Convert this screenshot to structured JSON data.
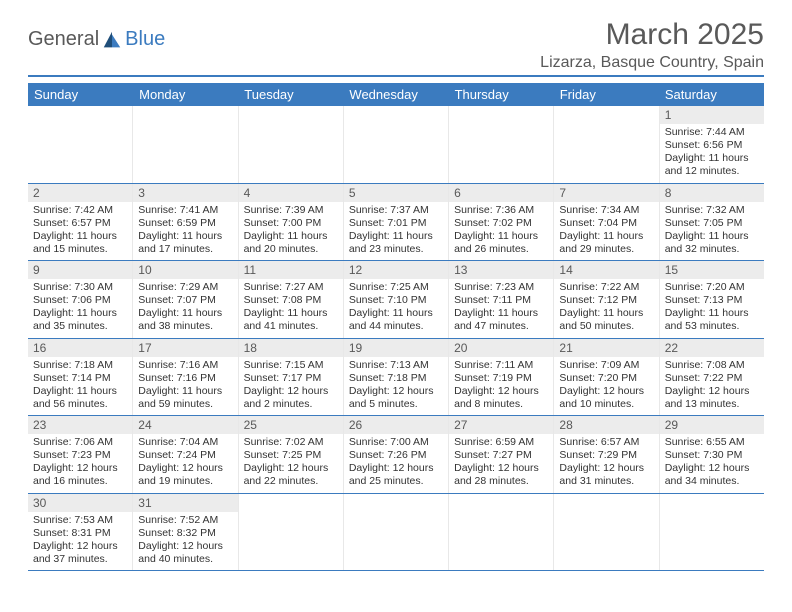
{
  "logo": {
    "text1": "General",
    "text2": "Blue"
  },
  "title": "March 2025",
  "location": "Lizarza, Basque Country, Spain",
  "colors": {
    "accent": "#3b7bbf",
    "text_muted": "#595959",
    "daynum_bg": "#ececec",
    "cell_border": "#e8e8e8",
    "background": "#ffffff"
  },
  "typography": {
    "title_fontsize": 30,
    "location_fontsize": 16,
    "dayheader_fontsize": 13,
    "daynum_fontsize": 12,
    "body_fontsize": 10.5
  },
  "calendar": {
    "type": "table",
    "columns": [
      "Sunday",
      "Monday",
      "Tuesday",
      "Wednesday",
      "Thursday",
      "Friday",
      "Saturday"
    ],
    "weeks": [
      [
        null,
        null,
        null,
        null,
        null,
        null,
        {
          "n": "1",
          "sr": "Sunrise: 7:44 AM",
          "ss": "Sunset: 6:56 PM",
          "d1": "Daylight: 11 hours",
          "d2": "and 12 minutes."
        }
      ],
      [
        {
          "n": "2",
          "sr": "Sunrise: 7:42 AM",
          "ss": "Sunset: 6:57 PM",
          "d1": "Daylight: 11 hours",
          "d2": "and 15 minutes."
        },
        {
          "n": "3",
          "sr": "Sunrise: 7:41 AM",
          "ss": "Sunset: 6:59 PM",
          "d1": "Daylight: 11 hours",
          "d2": "and 17 minutes."
        },
        {
          "n": "4",
          "sr": "Sunrise: 7:39 AM",
          "ss": "Sunset: 7:00 PM",
          "d1": "Daylight: 11 hours",
          "d2": "and 20 minutes."
        },
        {
          "n": "5",
          "sr": "Sunrise: 7:37 AM",
          "ss": "Sunset: 7:01 PM",
          "d1": "Daylight: 11 hours",
          "d2": "and 23 minutes."
        },
        {
          "n": "6",
          "sr": "Sunrise: 7:36 AM",
          "ss": "Sunset: 7:02 PM",
          "d1": "Daylight: 11 hours",
          "d2": "and 26 minutes."
        },
        {
          "n": "7",
          "sr": "Sunrise: 7:34 AM",
          "ss": "Sunset: 7:04 PM",
          "d1": "Daylight: 11 hours",
          "d2": "and 29 minutes."
        },
        {
          "n": "8",
          "sr": "Sunrise: 7:32 AM",
          "ss": "Sunset: 7:05 PM",
          "d1": "Daylight: 11 hours",
          "d2": "and 32 minutes."
        }
      ],
      [
        {
          "n": "9",
          "sr": "Sunrise: 7:30 AM",
          "ss": "Sunset: 7:06 PM",
          "d1": "Daylight: 11 hours",
          "d2": "and 35 minutes."
        },
        {
          "n": "10",
          "sr": "Sunrise: 7:29 AM",
          "ss": "Sunset: 7:07 PM",
          "d1": "Daylight: 11 hours",
          "d2": "and 38 minutes."
        },
        {
          "n": "11",
          "sr": "Sunrise: 7:27 AM",
          "ss": "Sunset: 7:08 PM",
          "d1": "Daylight: 11 hours",
          "d2": "and 41 minutes."
        },
        {
          "n": "12",
          "sr": "Sunrise: 7:25 AM",
          "ss": "Sunset: 7:10 PM",
          "d1": "Daylight: 11 hours",
          "d2": "and 44 minutes."
        },
        {
          "n": "13",
          "sr": "Sunrise: 7:23 AM",
          "ss": "Sunset: 7:11 PM",
          "d1": "Daylight: 11 hours",
          "d2": "and 47 minutes."
        },
        {
          "n": "14",
          "sr": "Sunrise: 7:22 AM",
          "ss": "Sunset: 7:12 PM",
          "d1": "Daylight: 11 hours",
          "d2": "and 50 minutes."
        },
        {
          "n": "15",
          "sr": "Sunrise: 7:20 AM",
          "ss": "Sunset: 7:13 PM",
          "d1": "Daylight: 11 hours",
          "d2": "and 53 minutes."
        }
      ],
      [
        {
          "n": "16",
          "sr": "Sunrise: 7:18 AM",
          "ss": "Sunset: 7:14 PM",
          "d1": "Daylight: 11 hours",
          "d2": "and 56 minutes."
        },
        {
          "n": "17",
          "sr": "Sunrise: 7:16 AM",
          "ss": "Sunset: 7:16 PM",
          "d1": "Daylight: 11 hours",
          "d2": "and 59 minutes."
        },
        {
          "n": "18",
          "sr": "Sunrise: 7:15 AM",
          "ss": "Sunset: 7:17 PM",
          "d1": "Daylight: 12 hours",
          "d2": "and 2 minutes."
        },
        {
          "n": "19",
          "sr": "Sunrise: 7:13 AM",
          "ss": "Sunset: 7:18 PM",
          "d1": "Daylight: 12 hours",
          "d2": "and 5 minutes."
        },
        {
          "n": "20",
          "sr": "Sunrise: 7:11 AM",
          "ss": "Sunset: 7:19 PM",
          "d1": "Daylight: 12 hours",
          "d2": "and 8 minutes."
        },
        {
          "n": "21",
          "sr": "Sunrise: 7:09 AM",
          "ss": "Sunset: 7:20 PM",
          "d1": "Daylight: 12 hours",
          "d2": "and 10 minutes."
        },
        {
          "n": "22",
          "sr": "Sunrise: 7:08 AM",
          "ss": "Sunset: 7:22 PM",
          "d1": "Daylight: 12 hours",
          "d2": "and 13 minutes."
        }
      ],
      [
        {
          "n": "23",
          "sr": "Sunrise: 7:06 AM",
          "ss": "Sunset: 7:23 PM",
          "d1": "Daylight: 12 hours",
          "d2": "and 16 minutes."
        },
        {
          "n": "24",
          "sr": "Sunrise: 7:04 AM",
          "ss": "Sunset: 7:24 PM",
          "d1": "Daylight: 12 hours",
          "d2": "and 19 minutes."
        },
        {
          "n": "25",
          "sr": "Sunrise: 7:02 AM",
          "ss": "Sunset: 7:25 PM",
          "d1": "Daylight: 12 hours",
          "d2": "and 22 minutes."
        },
        {
          "n": "26",
          "sr": "Sunrise: 7:00 AM",
          "ss": "Sunset: 7:26 PM",
          "d1": "Daylight: 12 hours",
          "d2": "and 25 minutes."
        },
        {
          "n": "27",
          "sr": "Sunrise: 6:59 AM",
          "ss": "Sunset: 7:27 PM",
          "d1": "Daylight: 12 hours",
          "d2": "and 28 minutes."
        },
        {
          "n": "28",
          "sr": "Sunrise: 6:57 AM",
          "ss": "Sunset: 7:29 PM",
          "d1": "Daylight: 12 hours",
          "d2": "and 31 minutes."
        },
        {
          "n": "29",
          "sr": "Sunrise: 6:55 AM",
          "ss": "Sunset: 7:30 PM",
          "d1": "Daylight: 12 hours",
          "d2": "and 34 minutes."
        }
      ],
      [
        {
          "n": "30",
          "sr": "Sunrise: 7:53 AM",
          "ss": "Sunset: 8:31 PM",
          "d1": "Daylight: 12 hours",
          "d2": "and 37 minutes."
        },
        {
          "n": "31",
          "sr": "Sunrise: 7:52 AM",
          "ss": "Sunset: 8:32 PM",
          "d1": "Daylight: 12 hours",
          "d2": "and 40 minutes."
        },
        null,
        null,
        null,
        null,
        null
      ]
    ]
  }
}
